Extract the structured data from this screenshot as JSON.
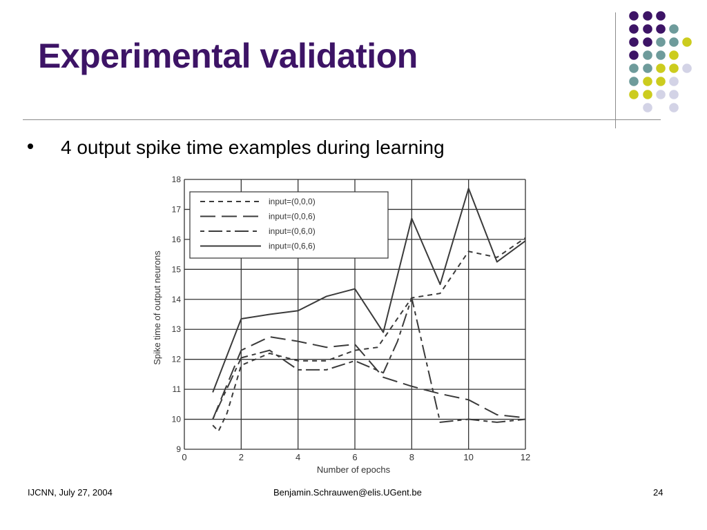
{
  "slide": {
    "title": "Experimental validation",
    "bullet": "4 output spike time examples during learning"
  },
  "footer": {
    "left": "IJCNN, July 27, 2004",
    "center": "Benjamin.Schrauwen@elis.UGent.be",
    "page": "24"
  },
  "decor_colors": {
    "purple": "#3d1466",
    "teal": "#6e9b9b",
    "yellow": "#cccc1e",
    "lavender": "#d3d3e6"
  },
  "chart_data": {
    "type": "line",
    "xlabel": "Number of epochs",
    "ylabel": "Spike time of output neurons",
    "xlim": [
      0,
      12
    ],
    "ylim": [
      9,
      18
    ],
    "xticks": [
      0,
      2,
      4,
      6,
      8,
      10,
      12
    ],
    "yticks": [
      9,
      10,
      11,
      12,
      13,
      14,
      15,
      16,
      17,
      18
    ],
    "grid": true,
    "legend_position": "top-left",
    "series": [
      {
        "name": "input=(0,0,0)",
        "dash": "7,6",
        "x": [
          1,
          1.2,
          1.5,
          2,
          3,
          4,
          5,
          6,
          6.8,
          8,
          9,
          10,
          11,
          12
        ],
        "y": [
          9.8,
          9.6,
          10.2,
          11.8,
          12.2,
          11.95,
          11.95,
          12.3,
          12.4,
          14.05,
          14.2,
          15.6,
          15.4,
          16.05
        ]
      },
      {
        "name": "input=(0,0,6)",
        "dash": "22,9",
        "x": [
          1,
          2,
          3,
          4,
          5,
          6,
          7,
          8,
          9,
          10,
          11,
          12
        ],
        "y": [
          10.0,
          12.3,
          12.75,
          12.6,
          12.4,
          12.5,
          11.4,
          11.1,
          10.85,
          10.65,
          10.15,
          10.05
        ]
      },
      {
        "name": "input=(0,6,0)",
        "dash": "6,6,20,6",
        "x": [
          1,
          2,
          3,
          4,
          5,
          6,
          7,
          7.5,
          8,
          9,
          10,
          11,
          12
        ],
        "y": [
          10.0,
          12.05,
          12.3,
          11.65,
          11.65,
          11.95,
          11.55,
          12.6,
          14.05,
          9.9,
          10.0,
          9.9,
          10.0
        ]
      },
      {
        "name": "input=(0,6,6)",
        "dash": "",
        "x": [
          1,
          2,
          3,
          4,
          5,
          6,
          7,
          8,
          9,
          10,
          11,
          12
        ],
        "y": [
          10.9,
          13.35,
          13.5,
          13.62,
          14.1,
          14.35,
          12.9,
          16.7,
          14.5,
          17.7,
          15.25,
          15.95
        ]
      }
    ]
  }
}
